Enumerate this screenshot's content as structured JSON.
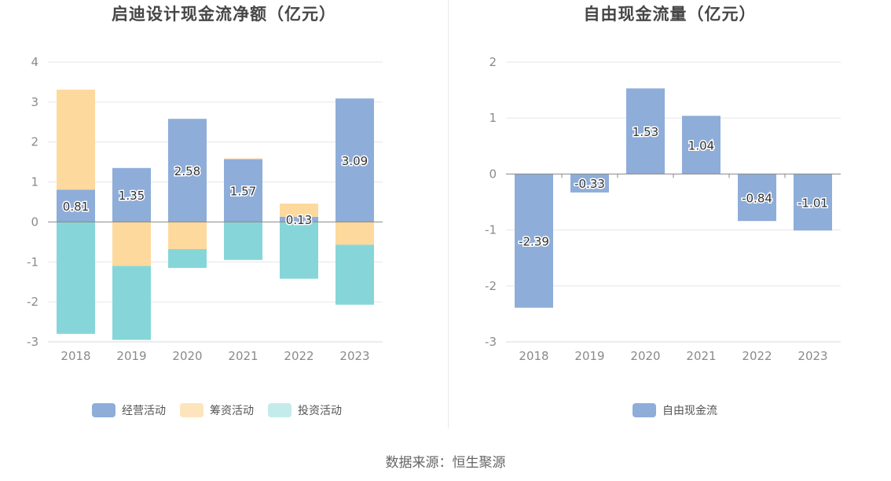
{
  "source_text": "数据来源：恒生聚源",
  "colors": {
    "operating": "#8eadd9",
    "financing": "#fed99d",
    "investing": "#86d6d9",
    "free_cash_flow": "#8eadd9",
    "legend_financing": "#fde4bd",
    "legend_investing": "#c4ebec",
    "grid": "#e6e6e6",
    "zero_line": "#888888"
  },
  "chart_data": [
    {
      "type": "bar",
      "stacked": true,
      "title": "启迪设计现金流净额（亿元）",
      "categories": [
        "2018",
        "2019",
        "2020",
        "2021",
        "2022",
        "2023"
      ],
      "ylim": [
        -3,
        4
      ],
      "yticks": [
        -3,
        -2,
        -1,
        0,
        1,
        2,
        3,
        4
      ],
      "grid": true,
      "legend_position": "bottom",
      "series": [
        {
          "name": "经营活动",
          "values": [
            0.81,
            1.35,
            2.58,
            1.57,
            0.13,
            3.09
          ],
          "show_labels": true
        },
        {
          "name": "筹资活动",
          "values": [
            2.5,
            -1.1,
            -0.68,
            0.02,
            0.33,
            -0.57
          ],
          "show_labels": false
        },
        {
          "name": "投资活动",
          "values": [
            -2.8,
            -1.85,
            -0.47,
            -0.95,
            -1.42,
            -1.5
          ],
          "show_labels": false
        }
      ]
    },
    {
      "type": "bar",
      "title": "自由现金流量（亿元）",
      "categories": [
        "2018",
        "2019",
        "2020",
        "2021",
        "2022",
        "2023"
      ],
      "ylim": [
        -3,
        2
      ],
      "yticks": [
        -3,
        -2,
        -1,
        0,
        1,
        2
      ],
      "grid": true,
      "legend_position": "bottom",
      "series": [
        {
          "name": "自由现金流",
          "values": [
            -2.39,
            -0.33,
            1.53,
            1.04,
            -0.84,
            -1.01
          ],
          "show_labels": true
        }
      ]
    }
  ]
}
